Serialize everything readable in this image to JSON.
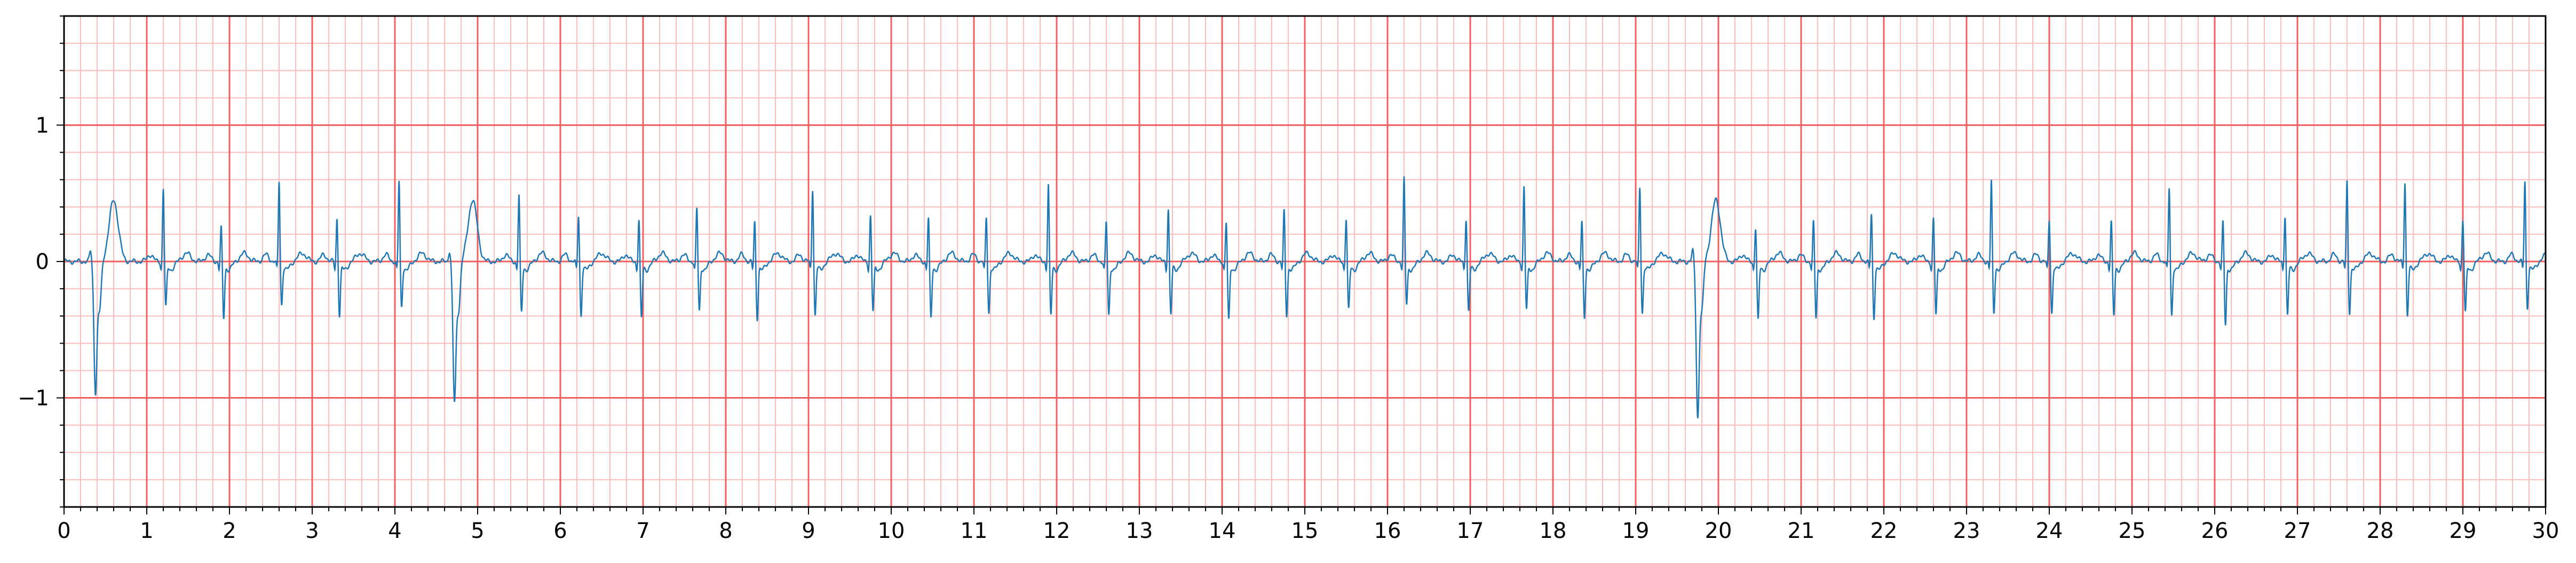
{
  "chart_data": {
    "type": "line",
    "title": "",
    "xlabel": "",
    "ylabel": "",
    "xlim": [
      0,
      30
    ],
    "ylim": [
      -1.8,
      1.8
    ],
    "x_ticks": [
      0,
      1,
      2,
      3,
      4,
      5,
      6,
      7,
      8,
      9,
      10,
      11,
      12,
      13,
      14,
      15,
      16,
      17,
      18,
      19,
      20,
      21,
      22,
      23,
      24,
      25,
      26,
      27,
      28,
      29,
      30
    ],
    "x_tick_labels": [
      "0",
      "1",
      "2",
      "3",
      "4",
      "5",
      "6",
      "7",
      "8",
      "9",
      "10",
      "11",
      "12",
      "13",
      "14",
      "15",
      "16",
      "17",
      "18",
      "19",
      "20",
      "21",
      "22",
      "23",
      "24",
      "25",
      "26",
      "27",
      "28",
      "29",
      "30"
    ],
    "y_ticks": [
      -1,
      0,
      1
    ],
    "y_tick_labels": [
      "−1",
      "0",
      "1"
    ],
    "grid": {
      "major": true,
      "minor": true,
      "major_x_step": 1,
      "major_y_step": 1,
      "minor_x_step": 0.2,
      "minor_y_step": 0.2,
      "major_color": "#f06060",
      "minor_color": "#ffbcbc"
    },
    "series": [
      {
        "color": "#1f77b4",
        "beats": [
          {
            "t": 0.38,
            "kind": "ventricular",
            "amp": -0.95,
            "t_amp": 0.45
          },
          {
            "t": 1.2,
            "kind": "qrs",
            "amp": 0.55,
            "s": -0.32
          },
          {
            "t": 1.9,
            "kind": "qrs",
            "amp": 0.26,
            "s": -0.4
          },
          {
            "t": 2.6,
            "kind": "qrs",
            "amp": 0.6,
            "s": -0.3
          },
          {
            "t": 3.3,
            "kind": "qrs",
            "amp": 0.33,
            "s": -0.38
          },
          {
            "t": 4.05,
            "kind": "qrs",
            "amp": 0.6,
            "s": -0.32
          },
          {
            "t": 4.72,
            "kind": "ventricular",
            "amp": -1.02,
            "t_amp": 0.45
          },
          {
            "t": 5.5,
            "kind": "qrs",
            "amp": 0.5,
            "s": -0.36
          },
          {
            "t": 6.22,
            "kind": "qrs",
            "amp": 0.35,
            "s": -0.38
          },
          {
            "t": 6.95,
            "kind": "qrs",
            "amp": 0.32,
            "s": -0.4
          },
          {
            "t": 7.65,
            "kind": "qrs",
            "amp": 0.4,
            "s": -0.35
          },
          {
            "t": 8.35,
            "kind": "qrs",
            "amp": 0.3,
            "s": -0.4
          },
          {
            "t": 9.05,
            "kind": "qrs",
            "amp": 0.55,
            "s": -0.38
          },
          {
            "t": 9.75,
            "kind": "qrs",
            "amp": 0.35,
            "s": -0.35
          },
          {
            "t": 10.45,
            "kind": "qrs",
            "amp": 0.33,
            "s": -0.4
          },
          {
            "t": 11.15,
            "kind": "qrs",
            "amp": 0.33,
            "s": -0.36
          },
          {
            "t": 11.9,
            "kind": "qrs",
            "amp": 0.58,
            "s": -0.38
          },
          {
            "t": 12.6,
            "kind": "qrs",
            "amp": 0.3,
            "s": -0.38
          },
          {
            "t": 13.35,
            "kind": "qrs",
            "amp": 0.4,
            "s": -0.37
          },
          {
            "t": 14.05,
            "kind": "qrs",
            "amp": 0.3,
            "s": -0.42
          },
          {
            "t": 14.75,
            "kind": "qrs",
            "amp": 0.38,
            "s": -0.38
          },
          {
            "t": 15.5,
            "kind": "qrs",
            "amp": 0.33,
            "s": -0.34
          },
          {
            "t": 16.2,
            "kind": "qrs",
            "amp": 0.62,
            "s": -0.3
          },
          {
            "t": 16.95,
            "kind": "qrs",
            "amp": 0.33,
            "s": -0.35
          },
          {
            "t": 17.65,
            "kind": "qrs",
            "amp": 0.56,
            "s": -0.34
          },
          {
            "t": 18.35,
            "kind": "qrs",
            "amp": 0.3,
            "s": -0.4
          },
          {
            "t": 19.05,
            "kind": "qrs",
            "amp": 0.56,
            "s": -0.36
          },
          {
            "t": 19.75,
            "kind": "ventricular",
            "amp": -1.13,
            "t_amp": 0.45
          },
          {
            "t": 20.45,
            "kind": "qrs",
            "amp": 0.26,
            "s": -0.42
          },
          {
            "t": 21.15,
            "kind": "qrs",
            "amp": 0.3,
            "s": -0.4
          },
          {
            "t": 21.85,
            "kind": "qrs",
            "amp": 0.36,
            "s": -0.4
          },
          {
            "t": 22.6,
            "kind": "qrs",
            "amp": 0.33,
            "s": -0.38
          },
          {
            "t": 23.3,
            "kind": "qrs",
            "amp": 0.6,
            "s": -0.36
          },
          {
            "t": 24.0,
            "kind": "qrs",
            "amp": 0.32,
            "s": -0.36
          },
          {
            "t": 24.75,
            "kind": "qrs",
            "amp": 0.3,
            "s": -0.38
          },
          {
            "t": 25.45,
            "kind": "qrs",
            "amp": 0.55,
            "s": -0.38
          },
          {
            "t": 26.1,
            "kind": "qrs",
            "amp": 0.3,
            "s": -0.45
          },
          {
            "t": 26.85,
            "kind": "qrs",
            "amp": 0.35,
            "s": -0.38
          },
          {
            "t": 27.6,
            "kind": "qrs",
            "amp": 0.6,
            "s": -0.36
          },
          {
            "t": 28.3,
            "kind": "qrs",
            "amp": 0.6,
            "s": -0.38
          },
          {
            "t": 29.0,
            "kind": "qrs",
            "amp": 0.32,
            "s": -0.36
          },
          {
            "t": 29.75,
            "kind": "qrs",
            "amp": 0.6,
            "s": -0.32
          }
        ]
      }
    ]
  }
}
